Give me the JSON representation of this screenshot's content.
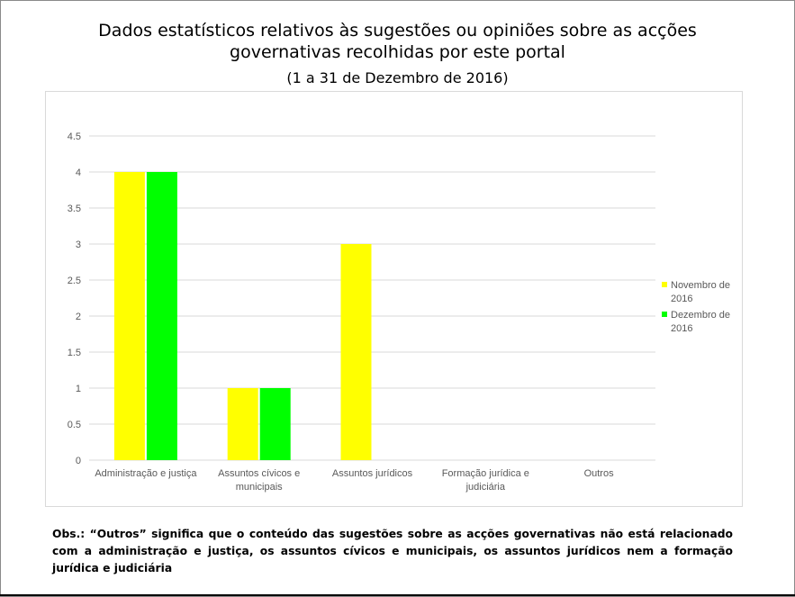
{
  "title_line1": "Dados estatísticos relativos às sugestões ou opiniões sobre as acções",
  "title_line2": "governativas recolhidas por este portal",
  "subtitle": "(1 a 31 de Dezembro de 2016)",
  "note": "Obs.: “Outros” significa que o conteúdo das sugestões sobre as acções governativas não está relacionado com a administração e justiça, os assuntos cívicos e municipais, os assuntos jurídicos nem a formação jurídica e judiciária",
  "chart_data": {
    "type": "bar",
    "categories": [
      [
        "Administração e justiça"
      ],
      [
        "Assuntos cívicos e",
        "municipais"
      ],
      [
        "Assuntos jurídicos"
      ],
      [
        "Formação jurídica e",
        "judiciária"
      ],
      [
        "Outros"
      ]
    ],
    "series": [
      {
        "name": [
          "Novembro de",
          "2016"
        ],
        "values": [
          4,
          1,
          3,
          0,
          0
        ],
        "color": "#ffff00"
      },
      {
        "name": [
          "Dezembro de",
          "2016"
        ],
        "values": [
          4,
          1,
          0,
          0,
          0
        ],
        "color": "#00ff00"
      }
    ],
    "ylim": [
      0,
      4.5
    ],
    "yticks": [
      "0",
      "0.5",
      "1",
      "1.5",
      "2",
      "2.5",
      "3",
      "3.5",
      "4",
      "4.5"
    ],
    "grid": true,
    "legend_position": "right",
    "xlabel": "",
    "ylabel": ""
  }
}
